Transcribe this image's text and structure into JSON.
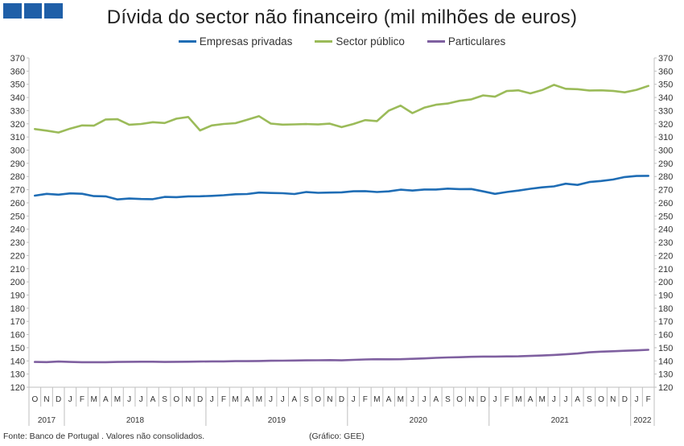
{
  "title": "Dívida do sector não financeiro (mil milhões de euros)",
  "footer": {
    "source": "Fonte: Banco de Portugal . Valores não consolidados.",
    "credit": "(Gráfico: GEE)"
  },
  "colors": {
    "logo": "#1f5fa8",
    "axis": "#bfbfbf"
  },
  "chart_data": {
    "type": "line",
    "title": "Dívida do sector não financeiro (mil milhões de euros)",
    "xlabel": "",
    "ylabel": "",
    "ylim": [
      120,
      370
    ],
    "ytick_step": 10,
    "grid": false,
    "legend": "top-center",
    "x": [
      "O 2017",
      "N 2017",
      "D 2017",
      "J 2018",
      "F 2018",
      "M 2018",
      "A 2018",
      "M 2018",
      "J 2018",
      "J 2018",
      "A 2018",
      "S 2018",
      "O 2018",
      "N 2018",
      "D 2018",
      "J 2019",
      "F 2019",
      "M 2019",
      "A 2019",
      "M 2019",
      "J 2019",
      "J 2019",
      "A 2019",
      "S 2019",
      "O 2019",
      "N 2019",
      "D 2019",
      "J 2020",
      "F 2020",
      "M 2020",
      "A 2020",
      "M 2020",
      "J 2020",
      "J 2020",
      "A 2020",
      "S 2020",
      "O 2020",
      "N 2020",
      "D 2020",
      "J 2021",
      "F 2021",
      "M 2021",
      "A 2021",
      "M 2021",
      "J 2021",
      "J 2021",
      "A 2021",
      "S 2021",
      "O 2021",
      "N 2021",
      "D 2021",
      "J 2022",
      "F 2022"
    ],
    "month_labels": [
      "O",
      "N",
      "D",
      "J",
      "F",
      "M",
      "A",
      "M",
      "J",
      "J",
      "A",
      "S",
      "O",
      "N",
      "D",
      "J",
      "F",
      "M",
      "A",
      "M",
      "J",
      "J",
      "A",
      "S",
      "O",
      "N",
      "D",
      "J",
      "F",
      "M",
      "A",
      "M",
      "J",
      "J",
      "A",
      "S",
      "O",
      "N",
      "D",
      "J",
      "F",
      "M",
      "A",
      "M",
      "J",
      "J",
      "A",
      "S",
      "O",
      "N",
      "D",
      "J",
      "F"
    ],
    "year_labels": [
      "2017",
      "2018",
      "2019",
      "2020",
      "2021",
      "2022"
    ],
    "series": [
      {
        "name": "Empresas privadas",
        "color": "#1f6db5",
        "values": [
          265.5,
          266.8,
          266.2,
          267.2,
          266.9,
          265.1,
          264.9,
          262.6,
          263.3,
          262.9,
          262.8,
          264.5,
          264.3,
          264.9,
          265.0,
          265.3,
          265.8,
          266.5,
          266.7,
          267.8,
          267.5,
          267.3,
          266.7,
          268.2,
          267.6,
          267.8,
          268.0,
          268.8,
          268.9,
          268.2,
          268.7,
          270.0,
          269.3,
          270.1,
          270.1,
          270.8,
          270.4,
          270.5,
          268.7,
          266.8,
          268.2,
          269.3,
          270.7,
          271.8,
          272.5,
          274.5,
          273.6,
          275.8,
          276.6,
          277.7,
          279.6,
          280.4,
          280.5
        ]
      },
      {
        "name": "Sector público",
        "color": "#9bbb59",
        "values": [
          316.0,
          314.8,
          313.4,
          316.4,
          318.8,
          318.6,
          323.3,
          323.5,
          319.3,
          319.9,
          321.2,
          320.6,
          323.9,
          325.2,
          315.0,
          318.8,
          319.9,
          320.5,
          323.1,
          325.8,
          320.2,
          319.4,
          319.6,
          319.8,
          319.5,
          320.1,
          317.5,
          319.9,
          322.8,
          322.1,
          330.0,
          333.8,
          328.1,
          332.2,
          334.5,
          335.4,
          337.5,
          338.6,
          341.6,
          340.6,
          344.9,
          345.4,
          343.1,
          345.6,
          349.6,
          346.6,
          346.3,
          345.3,
          345.4,
          345.0,
          343.9,
          345.8,
          348.8
        ]
      },
      {
        "name": "Particulares",
        "color": "#7f60a0",
        "values": [
          139.2,
          139.1,
          139.5,
          139.2,
          139.0,
          139.0,
          139.0,
          139.2,
          139.3,
          139.4,
          139.4,
          139.2,
          139.3,
          139.4,
          139.5,
          139.6,
          139.6,
          139.8,
          139.8,
          139.9,
          140.1,
          140.2,
          140.3,
          140.4,
          140.5,
          140.6,
          140.4,
          140.8,
          141.1,
          141.3,
          141.2,
          141.3,
          141.6,
          141.9,
          142.3,
          142.6,
          142.8,
          143.1,
          143.3,
          143.3,
          143.4,
          143.5,
          143.8,
          144.1,
          144.5,
          145.0,
          145.6,
          146.5,
          147.0,
          147.3,
          147.7,
          148.0,
          148.4
        ]
      }
    ]
  }
}
